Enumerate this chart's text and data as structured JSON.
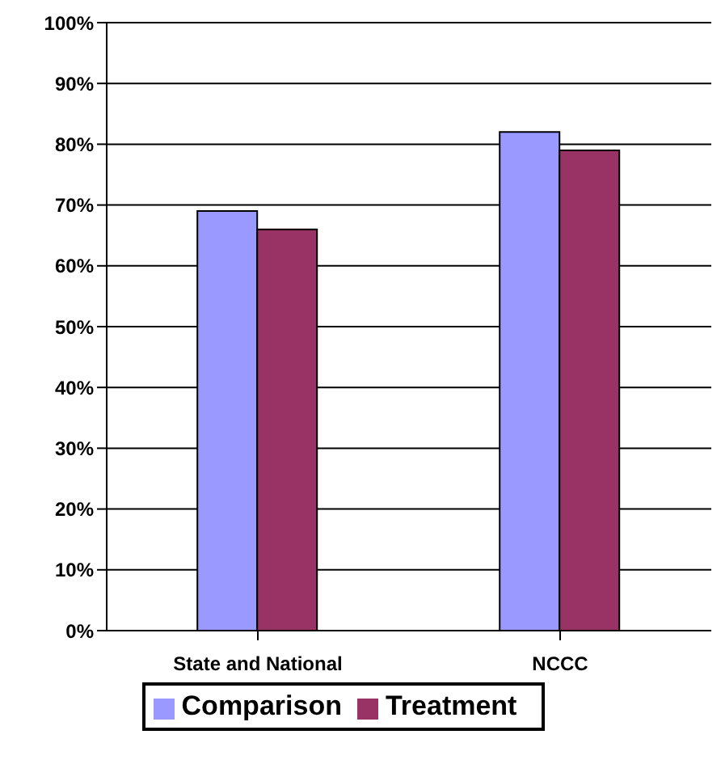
{
  "chart_data": {
    "type": "bar",
    "categories": [
      "State and National",
      "NCCC"
    ],
    "series": [
      {
        "name": "Comparison",
        "color": "#9999ff",
        "values": [
          69,
          82
        ]
      },
      {
        "name": "Treatment",
        "color": "#993366",
        "values": [
          66,
          79
        ]
      }
    ],
    "ylim": [
      0,
      100
    ],
    "yticks": [
      {
        "value": 0,
        "label": "0%"
      },
      {
        "value": 10,
        "label": "10%"
      },
      {
        "value": 20,
        "label": "20%"
      },
      {
        "value": 30,
        "label": "30%"
      },
      {
        "value": 40,
        "label": "40%"
      },
      {
        "value": 50,
        "label": "50%"
      },
      {
        "value": 60,
        "label": "60%"
      },
      {
        "value": 70,
        "label": "70%"
      },
      {
        "value": 80,
        "label": "80%"
      },
      {
        "value": 90,
        "label": "90%"
      },
      {
        "value": 100,
        "label": "100%"
      }
    ],
    "grid": "y",
    "legend": "bottom"
  }
}
